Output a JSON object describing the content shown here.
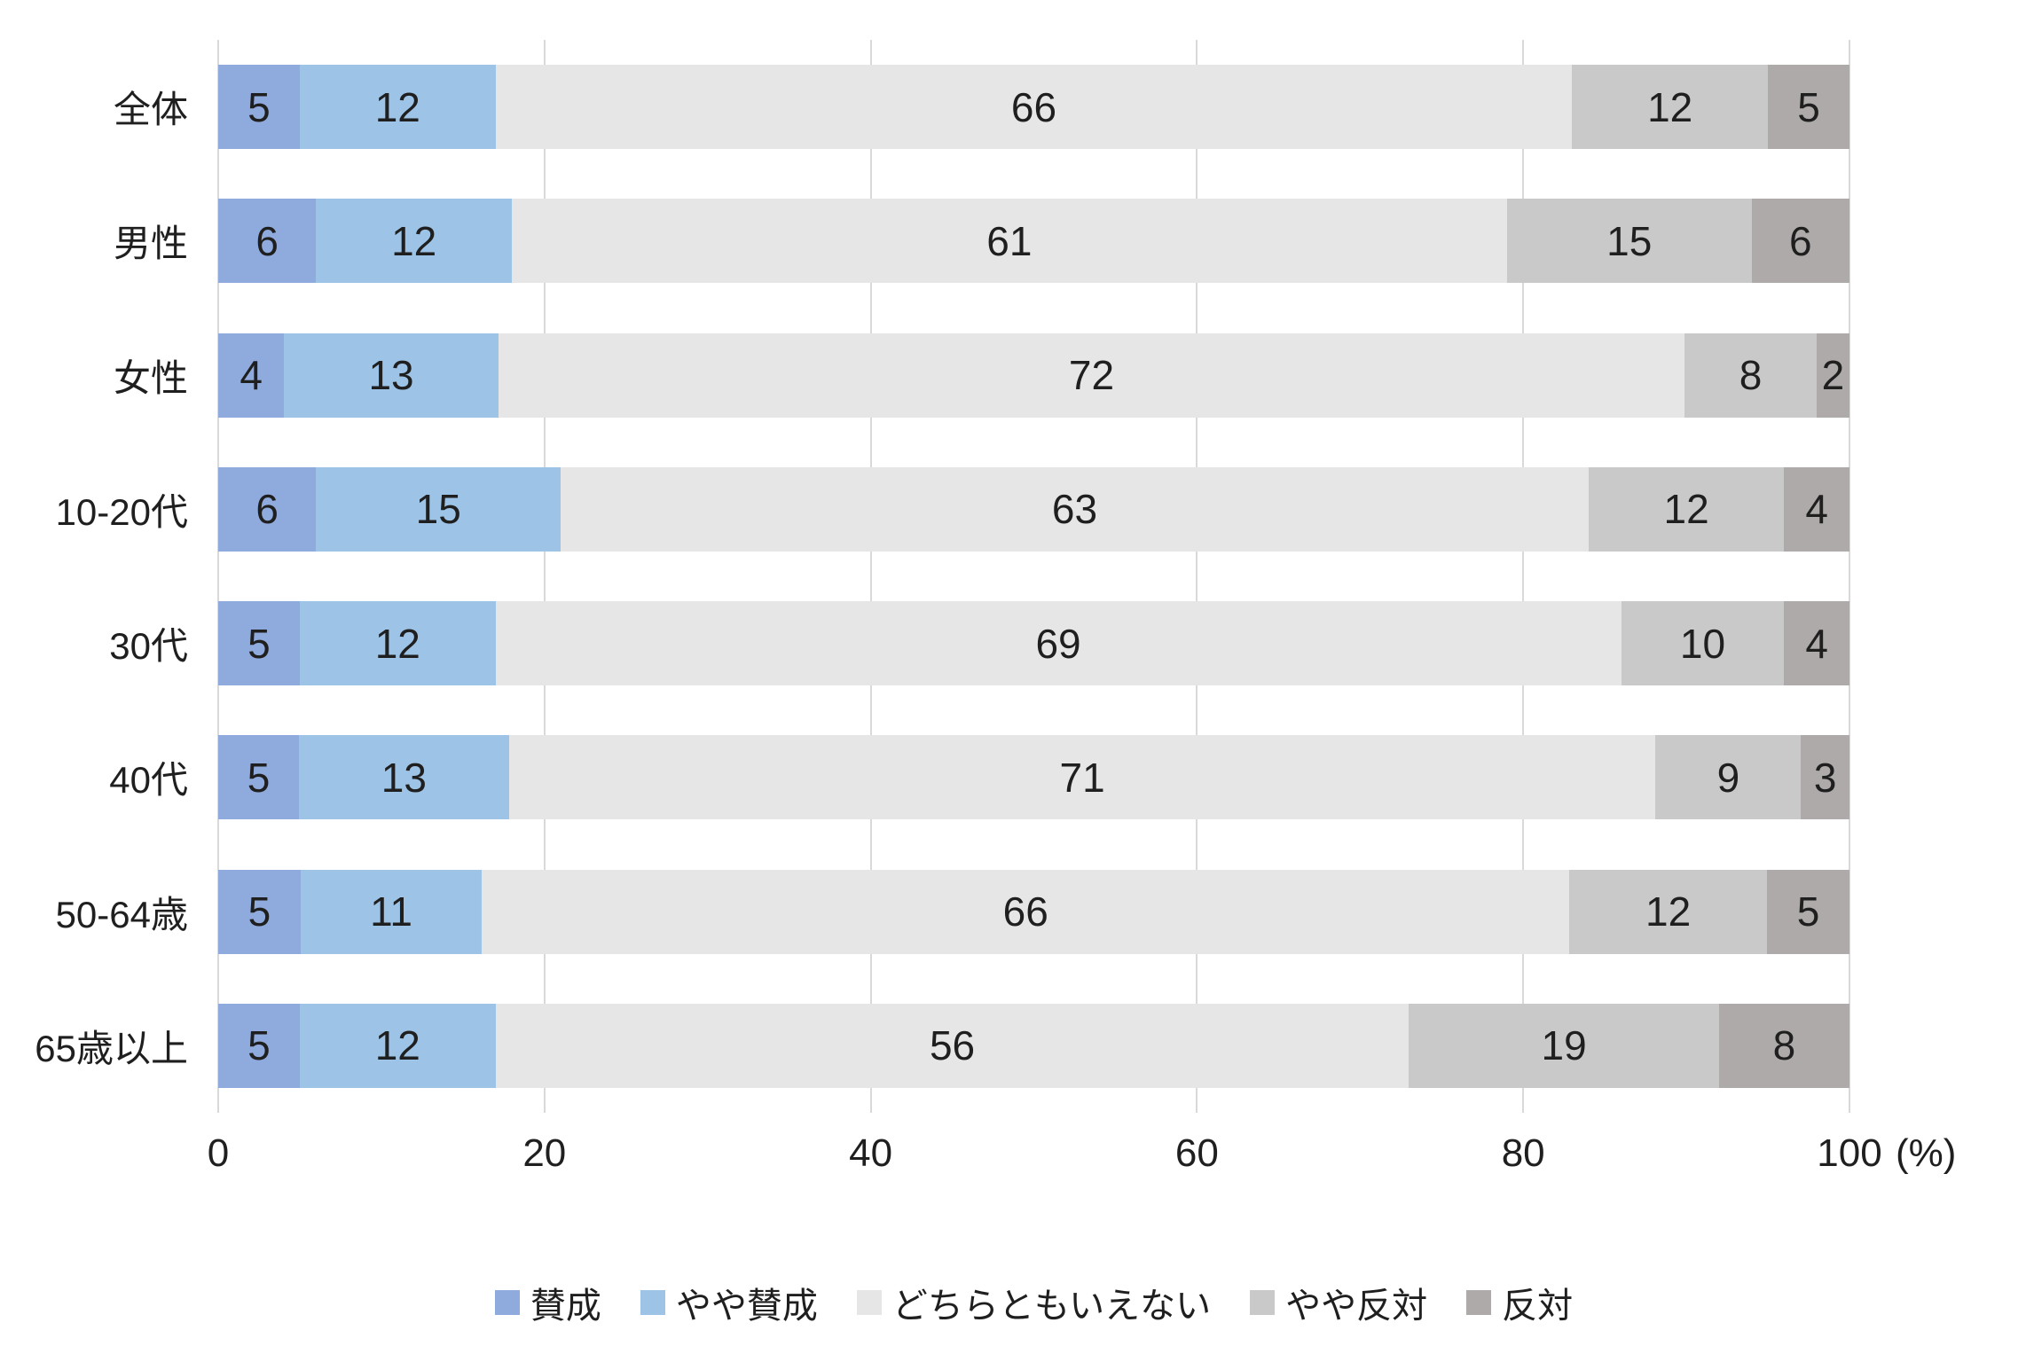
{
  "chart_data": {
    "type": "bar",
    "orientation": "horizontal",
    "stacked": true,
    "title": "",
    "xlabel": "",
    "ylabel": "",
    "unit_label": "(%)",
    "xlim": [
      0,
      100
    ],
    "x_ticks": [
      0,
      20,
      40,
      60,
      80,
      100
    ],
    "grid": true,
    "legend_position": "bottom",
    "categories": [
      "全体",
      "男性",
      "女性",
      "10-20代",
      "30代",
      "40代",
      "50-64歳",
      "65歳以上"
    ],
    "series": [
      {
        "name": "賛成",
        "color": "#8FAADC",
        "values": [
          5,
          6,
          4,
          6,
          5,
          5,
          5,
          5
        ]
      },
      {
        "name": "やや賛成",
        "color": "#9DC3E6",
        "values": [
          12,
          12,
          13,
          15,
          12,
          13,
          11,
          12
        ]
      },
      {
        "name": "どちらともいえない",
        "color": "#E7E6E6",
        "values": [
          66,
          61,
          72,
          63,
          69,
          71,
          66,
          56
        ]
      },
      {
        "name": "やや反対",
        "color": "#C9C9C9",
        "values": [
          12,
          15,
          8,
          12,
          10,
          9,
          12,
          19
        ]
      },
      {
        "name": "反対",
        "color": "#AEAAAA",
        "values": [
          5,
          6,
          2,
          4,
          4,
          3,
          5,
          8
        ]
      }
    ],
    "styles": {
      "grid_color": "#d9d9d9",
      "text_color": "#1f1f1f",
      "background": "#ffffff"
    }
  }
}
